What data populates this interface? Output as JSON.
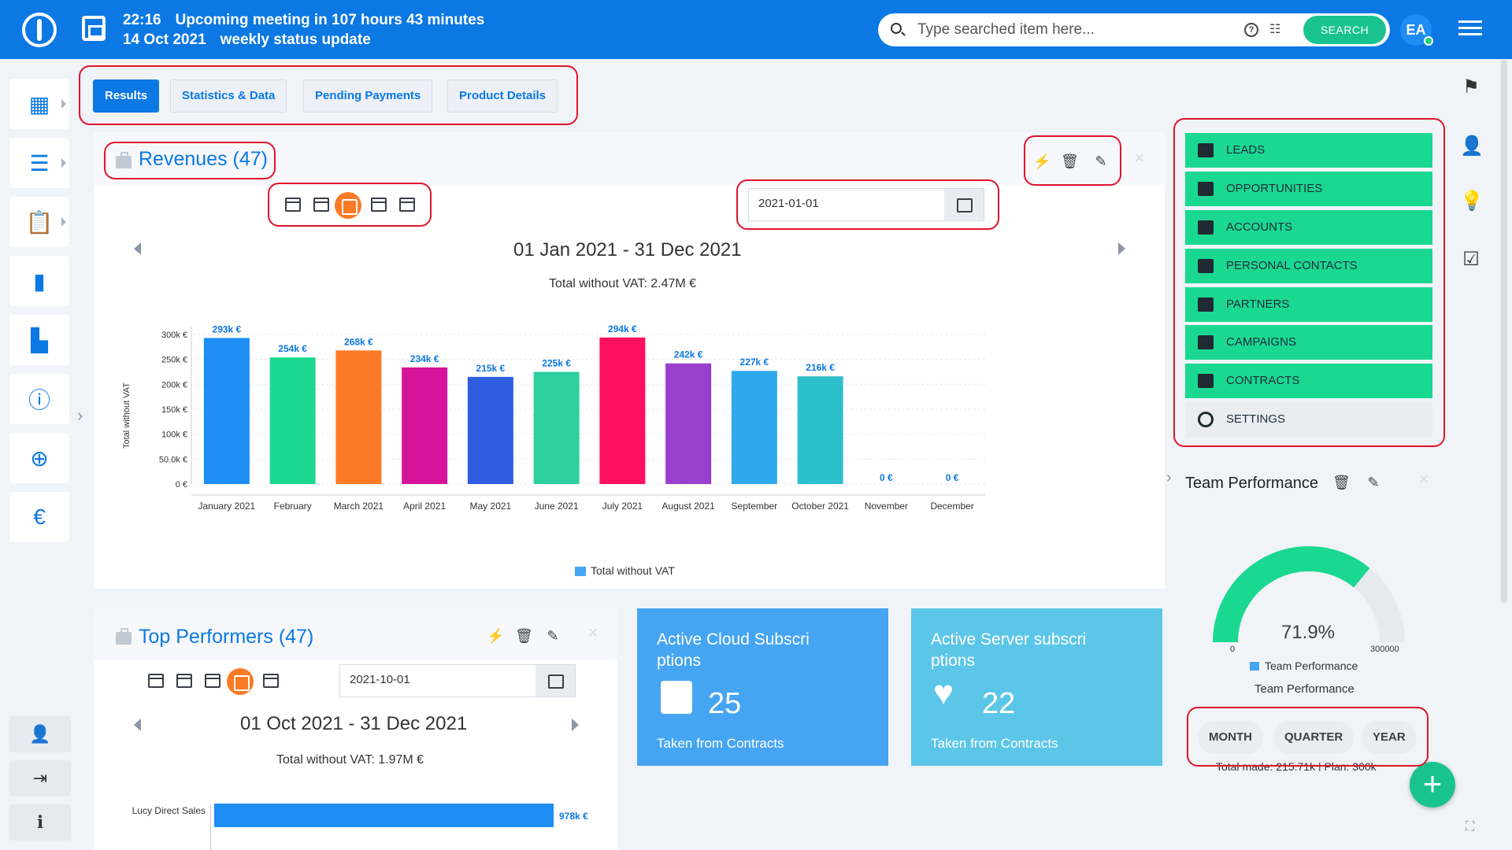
{
  "header": {
    "time": "22:16",
    "meeting_notice": "Upcoming meeting in 107 hours 43 minutes",
    "date": "14 Oct 2021",
    "meeting_name": "weekly status update",
    "search_placeholder": "Type searched item here...",
    "search_button": "SEARCH",
    "avatar_initials": "EA"
  },
  "tabs": [
    {
      "label": "Results",
      "active": true
    },
    {
      "label": "Statistics & Data",
      "active": false
    },
    {
      "label": "Pending Payments",
      "active": false
    },
    {
      "label": "Product Details",
      "active": false
    }
  ],
  "revenues": {
    "title": "Revenues (47)",
    "date_value": "2021-01-01",
    "range": "01 Jan 2021 - 31 Dec 2021",
    "total": "Total without VAT: 2.47M €",
    "legend": "Total without VAT"
  },
  "chart_data": {
    "type": "bar",
    "title": "",
    "xlabel": "",
    "ylabel": "Total without VAT",
    "categories": [
      "January 2021",
      "February",
      "March 2021",
      "April 2021",
      "May 2021",
      "June 2021",
      "July 2021",
      "August 2021",
      "September",
      "October 2021",
      "November",
      "December"
    ],
    "values": [
      293,
      254,
      268,
      234,
      215,
      225,
      294,
      242,
      227,
      216,
      0,
      0
    ],
    "value_labels": [
      "293k €",
      "254k €",
      "268k €",
      "234k €",
      "215k €",
      "225k €",
      "294k €",
      "242k €",
      "227k €",
      "216k €",
      "0 €",
      "0 €"
    ],
    "y_ticks": [
      "0 €",
      "50.0k €",
      "100k €",
      "150k €",
      "200k €",
      "250k €",
      "300k €"
    ],
    "ylim": [
      0,
      300
    ],
    "bar_colors": [
      "#1e8ef5",
      "#1bd891",
      "#fb7a25",
      "#d6149b",
      "#2e5ddf",
      "#2ecf9e",
      "#ff0f5f",
      "#9b3fcf",
      "#2ea9ee",
      "#2ebfcc",
      "#cccccc",
      "#cccccc"
    ],
    "grid": true,
    "legend": "bottom-center"
  },
  "top_performers": {
    "title": "Top Performers (47)",
    "date_value": "2021-10-01",
    "range": "01 Oct 2021 - 31 Dec 2021",
    "total": "Total without VAT: 1.97M €",
    "bar_label": "Lucy Direct Sales",
    "bar_value": "978k €"
  },
  "cards": [
    {
      "title": "Active Cloud Subscri ptions",
      "value": "25",
      "footer": "Taken from Contracts",
      "color": "#45a5f2"
    },
    {
      "title": "Active Server subscri ptions",
      "value": "22",
      "footer": "Taken from Contracts",
      "color": "#5cc6e8"
    }
  ],
  "entity_menu": [
    {
      "label": "LEADS",
      "icon": "leads-icon"
    },
    {
      "label": "OPPORTUNITIES",
      "icon": "briefcase-icon"
    },
    {
      "label": "ACCOUNTS",
      "icon": "accounts-icon"
    },
    {
      "label": "PERSONAL CONTACTS",
      "icon": "person-icon"
    },
    {
      "label": "PARTNERS",
      "icon": "partners-icon"
    },
    {
      "label": "CAMPAIGNS",
      "icon": "campaigns-icon"
    },
    {
      "label": "CONTRACTS",
      "icon": "contracts-icon"
    },
    {
      "label": "SETTINGS",
      "icon": "gear-icon"
    }
  ],
  "team_performance": {
    "title": "Team Performance",
    "percent": "71.9%",
    "percent_value": 71.9,
    "min_label": "0",
    "max_label": "300000",
    "legend": "Team Performance",
    "caption": "Team Performance",
    "buttons": [
      "MONTH",
      "QUARTER",
      "YEAR"
    ],
    "footer": "Total made: 215.71k | Plan: 300k"
  }
}
